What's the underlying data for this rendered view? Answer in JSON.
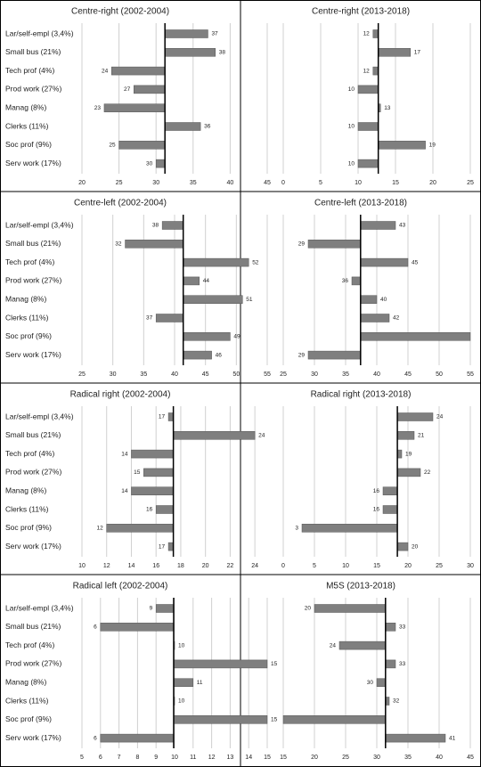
{
  "chart_data": [
    {
      "type": "bar",
      "title": "Centre-right (2002-2004)",
      "categories": [
        "Lar/self-empl (3,4%)",
        "Small bus (21%)",
        "Tech prof (4%)",
        "Prod work (27%)",
        "Manag (8%)",
        "Clerks (11%)",
        "Soc prof (9%)",
        "Serv work (17%)"
      ],
      "values": [
        37,
        38,
        24,
        27,
        23,
        36,
        25,
        30
      ],
      "reference": 31.2,
      "color": "#7f7f7f",
      "xlim": [
        20,
        45
      ],
      "xticks": [
        20,
        25,
        30,
        35,
        40,
        45
      ],
      "grid": true
    },
    {
      "type": "bar",
      "title": "Centre-right (2013-2018)",
      "values": [
        12,
        17,
        12,
        10,
        13,
        10,
        19,
        10
      ],
      "reference": 12.7,
      "color": "#7f7f7f",
      "xlim": [
        0,
        25
      ],
      "xticks": [
        0,
        5,
        10,
        15,
        20,
        25
      ],
      "grid": true
    },
    {
      "type": "bar",
      "title": "Centre-left (2002-2004)",
      "categories": [
        "Lar/self-empl (3,4%)",
        "Small bus (21%)",
        "Tech prof (4%)",
        "Prod work (27%)",
        "Manag (8%)",
        "Clerks (11%)",
        "Soc prof (9%)",
        "Serv work (17%)"
      ],
      "values": [
        38,
        32,
        52,
        44,
        51,
        37,
        49,
        46
      ],
      "reference": 41.4,
      "color": "#7f7f7f",
      "xlim": [
        25,
        55
      ],
      "xticks": [
        25,
        30,
        35,
        40,
        45,
        50,
        55
      ],
      "grid": true
    },
    {
      "type": "bar",
      "title": "Centre-left (2013-2018)",
      "values": [
        43,
        29,
        45,
        36,
        40,
        42,
        55,
        29
      ],
      "value_labels": [
        "43",
        "29",
        "45",
        "36",
        "40",
        "42",
        null,
        "29"
      ],
      "reference": 37.4,
      "color": "#7f7f7f",
      "xlim": [
        25,
        55
      ],
      "xticks": [
        25,
        30,
        35,
        40,
        45,
        50,
        55
      ],
      "grid": true
    },
    {
      "type": "bar",
      "title": "Radical right (2002-2004)",
      "categories": [
        "Lar/self-empl (3,4%)",
        "Small bus (21%)",
        "Tech prof (4%)",
        "Prod work (27%)",
        "Manag (8%)",
        "Clerks (11%)",
        "Soc prof (9%)",
        "Serv work (17%)"
      ],
      "values": [
        17,
        24,
        14,
        15,
        14,
        16,
        12,
        17
      ],
      "reference": 17.4,
      "color": "#7f7f7f",
      "xlim": [
        10,
        25
      ],
      "xticks": [
        10,
        12,
        14,
        16,
        18,
        20,
        22,
        24
      ],
      "grid": true
    },
    {
      "type": "bar",
      "title": "Radical right (2013-2018)",
      "values": [
        24,
        21,
        19,
        22,
        16,
        16,
        3,
        20
      ],
      "reference": 18.3,
      "color": "#7f7f7f",
      "xlim": [
        0,
        30
      ],
      "xticks": [
        0,
        5,
        10,
        15,
        20,
        25,
        30
      ],
      "grid": true
    },
    {
      "type": "bar",
      "title": "Radical left (2002-2004)",
      "categories": [
        "Lar/self-empl (3,4%)",
        "Small bus (21%)",
        "Tech prof (4%)",
        "Prod work (27%)",
        "Manag (8%)",
        "Clerks (11%)",
        "Soc prof (9%)",
        "Serv work (17%)"
      ],
      "values": [
        9,
        6,
        10,
        15,
        11,
        10,
        15,
        6
      ],
      "reference": 9.95,
      "color": "#7f7f7f",
      "xlim": [
        5,
        15
      ],
      "xticks": [
        5,
        6,
        7,
        8,
        9,
        10,
        11,
        12,
        13,
        14,
        15
      ],
      "grid": true
    },
    {
      "type": "bar",
      "title": "M5S (2013-2018)",
      "values": [
        20,
        33,
        24,
        33,
        30,
        32,
        15,
        41
      ],
      "value_labels": [
        "20",
        "33",
        "24",
        "33",
        "30",
        "32",
        null,
        "41"
      ],
      "reference": 31.4,
      "color": "#7f7f7f",
      "xlim": [
        15,
        45
      ],
      "xticks": [
        15,
        20,
        25,
        30,
        35,
        40,
        45
      ],
      "grid": true
    }
  ]
}
